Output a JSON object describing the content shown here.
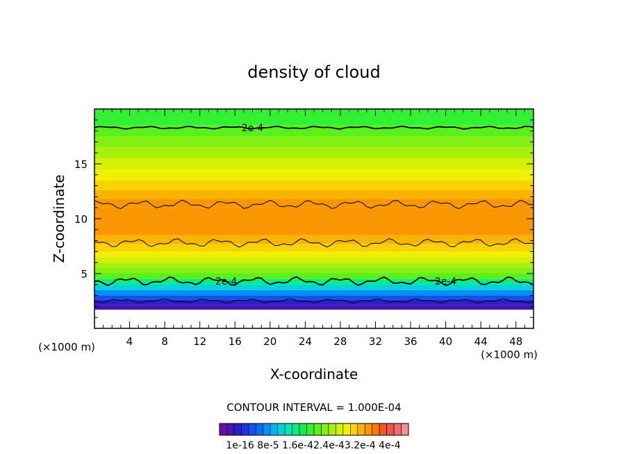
{
  "chart_data": {
    "type": "heatmap",
    "title": "density of cloud",
    "xlabel": "X-coordinate",
    "ylabel": "Z-coordinate",
    "x_unit": "(×1000 m)",
    "x_unit_right": "(×1000 m)",
    "xlim": [
      0,
      50
    ],
    "ylim": [
      0,
      20
    ],
    "x_ticks": [
      4,
      8,
      12,
      16,
      20,
      24,
      28,
      32,
      36,
      40,
      44,
      48
    ],
    "y_ticks": [
      5,
      10,
      15
    ],
    "contour_interval_text": "CONTOUR INTERVAL = 1.000E-04",
    "contour_label": "2e-4",
    "colorbar_labels": [
      "1e-16",
      "8e-5",
      "1.6e-4",
      "2.4e-4",
      "3.2e-4",
      "4e-4"
    ],
    "colorbar_label_text": "1e-16  8e-5  1.6e-42.4e-43.2e-4  4e-4",
    "colorbar_range": [
      1e-16,
      0.0004
    ],
    "colormap": [
      "#6a0aa8",
      "#4a14b4",
      "#2e1ec8",
      "#1e32dc",
      "#1450ec",
      "#0a6ef4",
      "#0090f8",
      "#00b4f0",
      "#00d2dc",
      "#00e6b4",
      "#00f080",
      "#14f050",
      "#32f032",
      "#5af01e",
      "#82f014",
      "#aaf00a",
      "#d2f000",
      "#f0f000",
      "#fad200",
      "#fab400",
      "#fa9600",
      "#fa7800",
      "#f05a1e",
      "#f05050",
      "#f07070",
      "#f09090"
    ],
    "profile": [
      {
        "z": 1.7,
        "value": 3e-05
      },
      {
        "z": 2.1,
        "value": 3.5e-05
      },
      {
        "z": 2.6,
        "value": 6.5e-05
      },
      {
        "z": 3.0,
        "value": 9.5e-05
      },
      {
        "z": 3.5,
        "value": 0.00013
      },
      {
        "z": 4.0,
        "value": 0.000165
      },
      {
        "z": 4.5,
        "value": 0.0002
      },
      {
        "z": 5.0,
        "value": 0.000225
      },
      {
        "z": 5.5,
        "value": 0.000245
      },
      {
        "z": 6.0,
        "value": 0.00026
      },
      {
        "z": 6.5,
        "value": 0.000275
      },
      {
        "z": 7.0,
        "value": 0.00029
      },
      {
        "z": 7.7,
        "value": 0.000305
      },
      {
        "z": 8.5,
        "value": 0.000315
      },
      {
        "z": 10.0,
        "value": 0.00032
      },
      {
        "z": 11.0,
        "value": 0.00031
      },
      {
        "z": 11.8,
        "value": 0.000295
      },
      {
        "z": 12.6,
        "value": 0.00028
      },
      {
        "z": 13.5,
        "value": 0.000265
      },
      {
        "z": 14.5,
        "value": 0.00025
      },
      {
        "z": 15.5,
        "value": 0.000235
      },
      {
        "z": 16.5,
        "value": 0.00022
      },
      {
        "z": 17.5,
        "value": 0.000205
      },
      {
        "z": 18.5,
        "value": 0.000195
      },
      {
        "z": 20.0,
        "value": 0.00018
      }
    ],
    "contour_levels_z": [
      {
        "level": "2e-4",
        "z": 18.3
      },
      {
        "level": "3e-4",
        "z": 11.3
      },
      {
        "level": "3e-4",
        "z": 7.8
      },
      {
        "level": "2e-4",
        "z": 4.3
      },
      {
        "level": "1e-4",
        "z": 2.5
      }
    ]
  }
}
